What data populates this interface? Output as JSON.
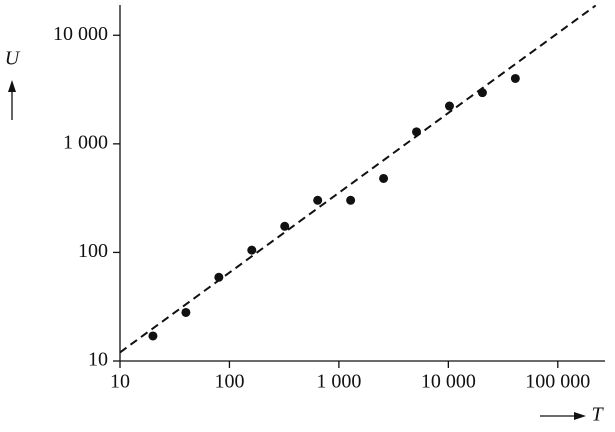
{
  "chart_data": {
    "type": "scatter",
    "x_label": "T",
    "y_label": "U",
    "x": [
      20,
      40,
      80,
      160,
      320,
      640,
      1280,
      2560,
      5120,
      10240,
      20480,
      40960
    ],
    "series": [
      {
        "color": "#111111",
        "values": [
          17,
          28,
          59,
          105,
          174,
          302,
          302,
          480,
          1290,
          2230,
          2960,
          4000
        ]
      }
    ],
    "trend_line": {
      "x": [
        10,
        222000
      ],
      "y": [
        12,
        18800
      ],
      "color": "#111111",
      "dashed": true
    },
    "xscale": "log",
    "yscale": "log",
    "xlim": [
      10,
      270000
    ],
    "ylim": [
      10,
      19000
    ],
    "xticks": [
      10,
      100,
      {
        "value": 1000,
        "label": "1 000"
      },
      {
        "value": 10000,
        "label": "10 000"
      },
      {
        "value": 100000,
        "label": "100 000"
      }
    ],
    "yticks": [
      10,
      100,
      {
        "value": 1000,
        "label": "1 000"
      },
      {
        "value": 10000,
        "label": "10 000"
      }
    ],
    "grid": false
  }
}
